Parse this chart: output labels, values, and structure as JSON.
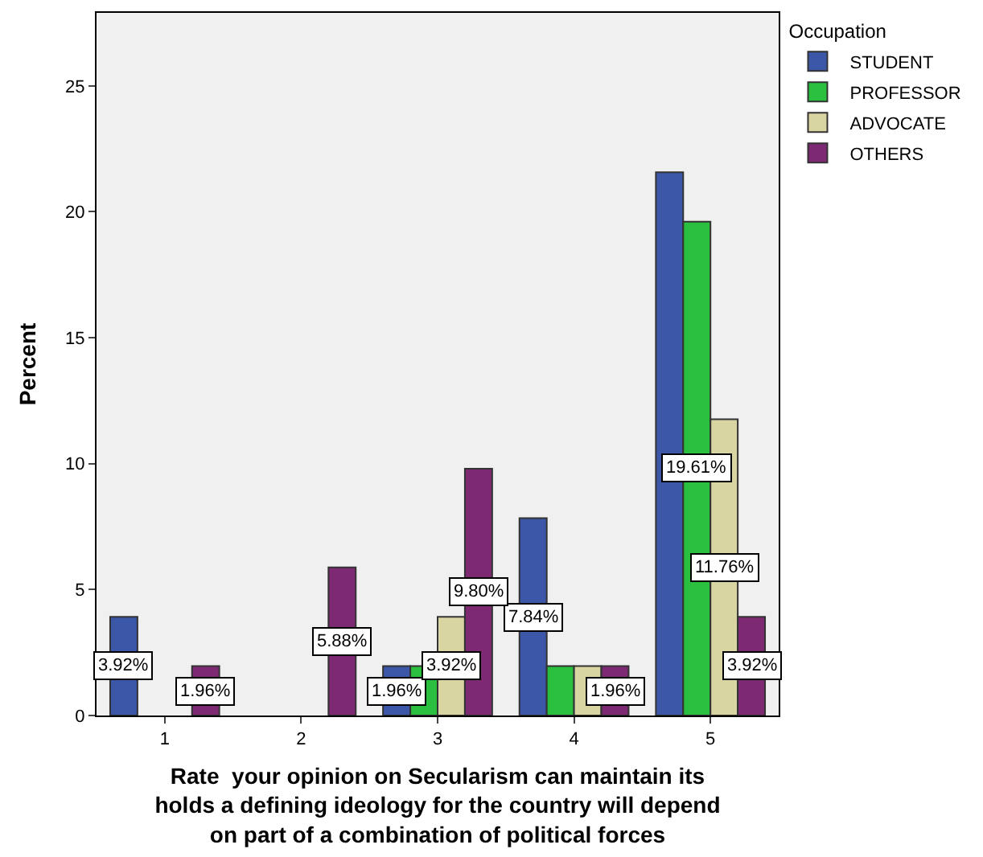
{
  "chart_data": {
    "type": "bar",
    "xlabel": "Rate  your opinion on Secularism can maintain its\nholds a defining ideology for the country will depend\non part of a combination of political forces",
    "ylabel": "Percent",
    "legend_title": "Occupation",
    "legend": "top right",
    "grid": false,
    "categories": [
      "1",
      "2",
      "3",
      "4",
      "5"
    ],
    "ylim": [
      0,
      27.9
    ],
    "yticks": [
      0,
      5,
      10,
      15,
      20,
      25
    ],
    "series": [
      {
        "name": "STUDENT",
        "color": "#3c56a8",
        "values": [
          3.92,
          null,
          1.96,
          7.84,
          21.57
        ],
        "value_labels": [
          "3.92%",
          null,
          "1.96%",
          "7.84%",
          null
        ]
      },
      {
        "name": "PROFESSOR",
        "color": "#2bbf3f",
        "values": [
          null,
          null,
          1.96,
          1.96,
          19.61
        ],
        "value_labels": [
          null,
          null,
          null,
          null,
          "19.61%"
        ]
      },
      {
        "name": "ADVOCATE",
        "color": "#d9d5a3",
        "values": [
          null,
          null,
          3.92,
          1.96,
          11.76
        ],
        "value_labels": [
          null,
          null,
          "3.92%",
          null,
          "11.76%"
        ]
      },
      {
        "name": "OTHERS",
        "color": "#7e2a73",
        "values": [
          1.96,
          5.88,
          9.8,
          1.96,
          3.92
        ],
        "value_labels": [
          "1.96%",
          "5.88%",
          "9.80%",
          "1.96%",
          "3.92%"
        ]
      }
    ]
  }
}
